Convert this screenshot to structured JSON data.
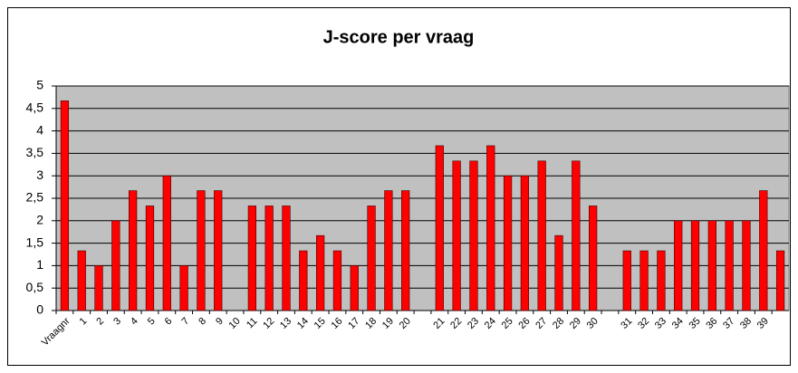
{
  "chart_data": {
    "type": "bar",
    "title": "J-score per vraag",
    "categories": [
      "Vraagnr",
      "1",
      "2",
      "3",
      "4",
      "5",
      "6",
      "7",
      "8",
      "9",
      "10",
      "11",
      "12",
      "13",
      "14",
      "15",
      "16",
      "17",
      "18",
      "19",
      "20",
      null,
      "21",
      "22",
      "23",
      "24",
      "25",
      "26",
      "27",
      "28",
      "29",
      "30",
      null,
      "31",
      "32",
      "33",
      "34",
      "35",
      "36",
      "37",
      "38",
      "39",
      null
    ],
    "values": [
      4.67,
      1.33,
      1,
      2,
      2.67,
      2.33,
      3,
      1,
      2.67,
      2.67,
      null,
      2.33,
      2.33,
      2.33,
      1.33,
      1.67,
      1.33,
      1,
      2.33,
      2.67,
      2.67,
      null,
      3.67,
      3.33,
      3.33,
      3.67,
      3,
      3,
      3.33,
      1.67,
      3.33,
      2.33,
      null,
      1.33,
      1.33,
      1.33,
      2,
      2,
      2,
      2,
      2,
      2.67,
      1.33
    ],
    "color": "#ff0000",
    "ylim": [
      0,
      5
    ],
    "yticks": [
      0,
      {
        "value": 0.5,
        "label": "0,5"
      },
      1,
      {
        "value": 1.5,
        "label": "1,5"
      },
      2,
      {
        "value": 2.5,
        "label": "2,5"
      },
      3,
      {
        "value": 3.5,
        "label": "3,5"
      },
      4,
      {
        "value": 4.5,
        "label": "4,5"
      },
      5
    ],
    "grid": true
  }
}
